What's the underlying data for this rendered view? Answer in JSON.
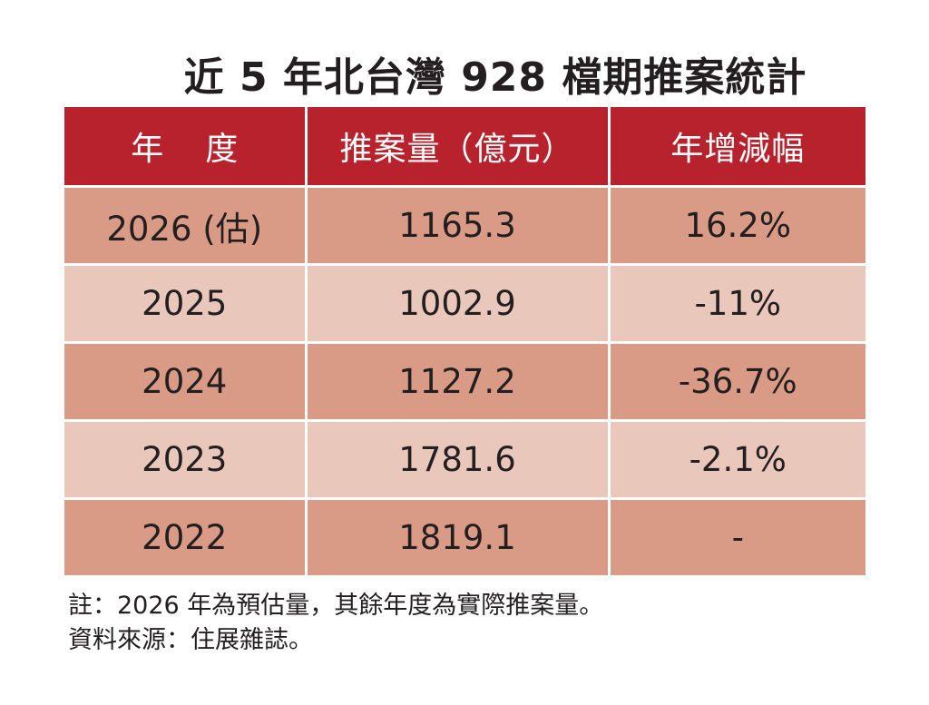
{
  "title": "近 5 年北台灣 928 檔期推案統計",
  "table": {
    "headers": {
      "year_a": "年",
      "year_b": "度",
      "amount": "推案量（億元）",
      "change": "年增減幅"
    },
    "rows": [
      {
        "year": "2026 (估)",
        "amount": "1165.3",
        "change": "16.2%"
      },
      {
        "year": "2025",
        "amount": "1002.9",
        "change": "-11%"
      },
      {
        "year": "2024",
        "amount": "1127.2",
        "change": "-36.7%"
      },
      {
        "year": "2023",
        "amount": "1781.6",
        "change": "-2.1%"
      },
      {
        "year": "2022",
        "amount": "1819.1",
        "change": "-"
      }
    ]
  },
  "notes": {
    "note": "註：2026 年為預估量，其餘年度為實際推案量。",
    "source": "資料來源：住展雜誌。"
  },
  "colors": {
    "header_bg": "#b8222d",
    "row_dark": "#d99b85",
    "row_light": "#eac7bb"
  }
}
